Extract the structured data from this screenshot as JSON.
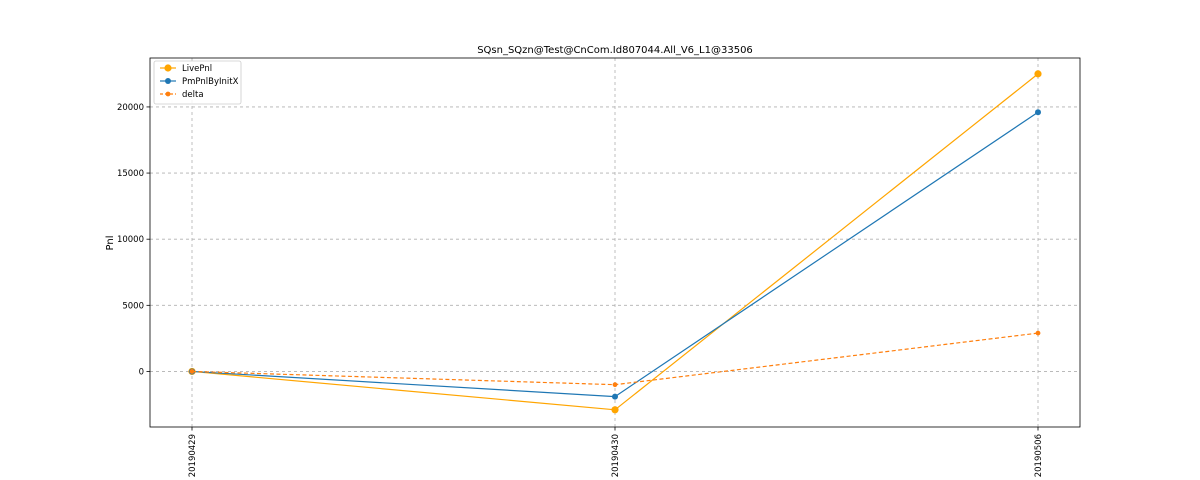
{
  "chart_data": {
    "type": "line",
    "title": "SQsn_SQzn@Test@CnCom.Id807044.All_V6_L1@33506",
    "xlabel": "",
    "ylabel": "Pnl",
    "categories": [
      "20190429",
      "20190430",
      "20190506"
    ],
    "ylim": [
      -4200,
      23700
    ],
    "yticks": [
      0,
      5000,
      10000,
      15000,
      20000
    ],
    "grid": true,
    "legend_position": "top-left",
    "series": [
      {
        "name": "LivePnl",
        "values": [
          0,
          -2900,
          22500
        ],
        "color": "#ffa500",
        "line_style": "solid",
        "marker": "circle"
      },
      {
        "name": "PmPnlByInitX",
        "values": [
          0,
          -1900,
          19600
        ],
        "color": "#1f77b4",
        "line_style": "solid",
        "marker": "circle"
      },
      {
        "name": "delta",
        "values": [
          0,
          -1000,
          2900
        ],
        "color": "#ff7f0e",
        "line_style": "dashed",
        "marker": "circle"
      }
    ]
  }
}
